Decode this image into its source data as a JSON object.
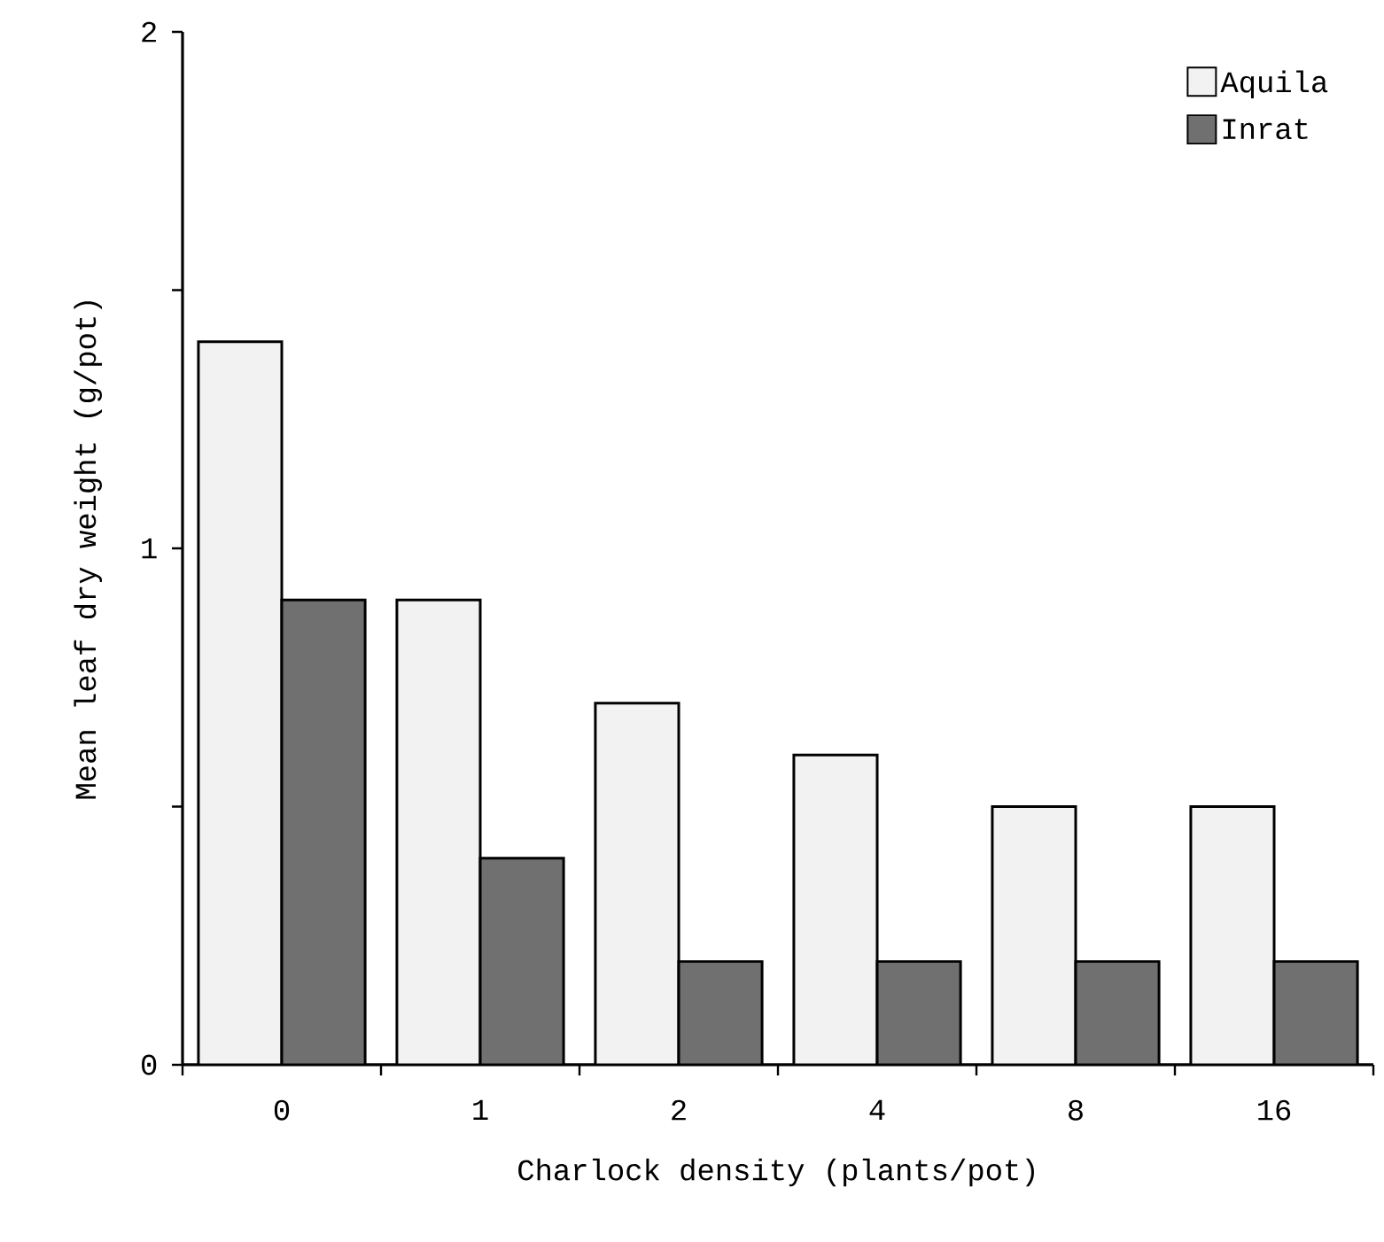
{
  "chart_data": {
    "type": "bar",
    "xlabel": "Charlock density (plants/pot)",
    "ylabel": "Mean leaf dry weight (g/pot)",
    "categories": [
      "0",
      "1",
      "2",
      "4",
      "8",
      "16"
    ],
    "series": [
      {
        "name": "Aquila",
        "color": "#f2f2f2",
        "values": [
          1.4,
          0.9,
          0.7,
          0.6,
          0.5,
          0.5
        ]
      },
      {
        "name": "Inrat",
        "color": "#707070",
        "values": [
          0.9,
          0.4,
          0.2,
          0.2,
          0.2,
          0.2
        ]
      }
    ],
    "ylim": [
      0,
      2
    ],
    "yticks": [
      0,
      {
        "value": 0.5,
        "label": null
      },
      1,
      {
        "value": 1.5,
        "label": null
      },
      2
    ],
    "grid": false,
    "legend": "top right"
  }
}
